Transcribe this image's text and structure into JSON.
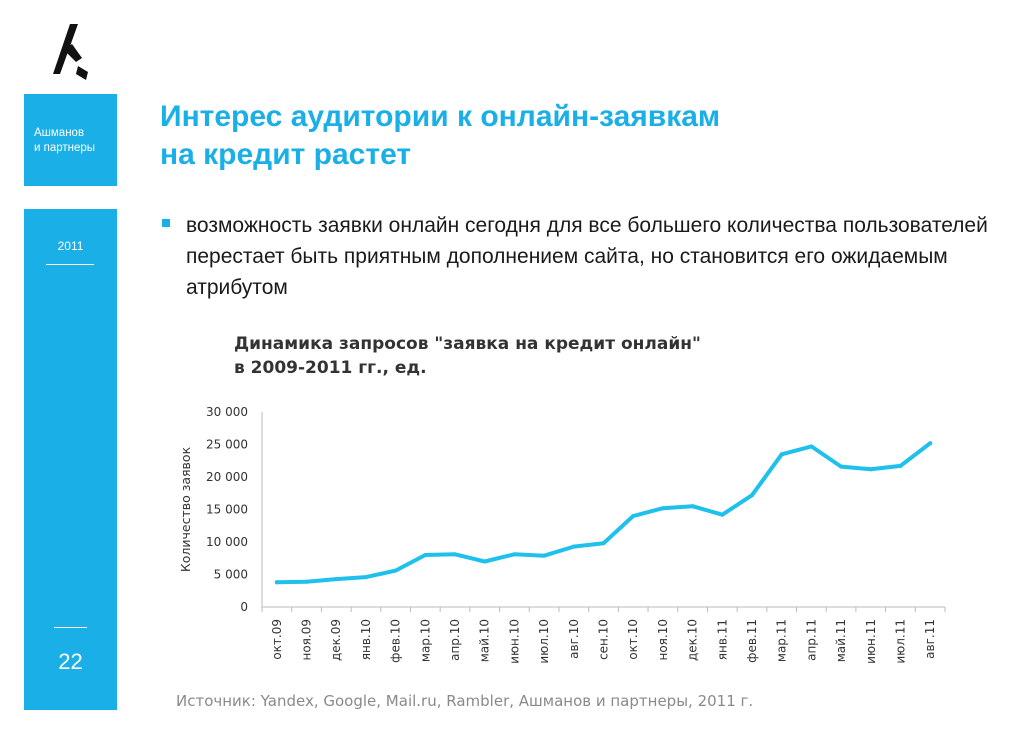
{
  "sidebar": {
    "brand_line1": "Ашманов",
    "brand_line2": "и партнеры",
    "year": "2011",
    "page_number": "22"
  },
  "header": {
    "title_line1": "Интерес аудитории к онлайн-заявкам",
    "title_line2": "на кредит растет"
  },
  "bullet": {
    "text": "возможность заявки онлайн сегодня для все большего количества пользователей перестает быть приятным дополнением сайта, но становится его ожидаемым атрибутом"
  },
  "chart_data": {
    "type": "line",
    "title_line1": "Динамика запросов \"заявка на кредит онлайн\"",
    "title_line2": "в 2009-2011 гг., ед.",
    "xlabel": "",
    "ylabel": "Количество заявок",
    "ylim": [
      0,
      30000
    ],
    "yticks": [
      0,
      5000,
      10000,
      15000,
      20000,
      25000,
      30000
    ],
    "ytick_labels": [
      "0",
      "5 000",
      "10 000",
      "15 000",
      "20 000",
      "25 000",
      "30 000"
    ],
    "categories": [
      "окт.09",
      "ноя.09",
      "дек.09",
      "янв.10",
      "фев.10",
      "мар.10",
      "апр.10",
      "май.10",
      "июн.10",
      "июл.10",
      "авг.10",
      "сен.10",
      "окт.10",
      "ноя.10",
      "дек.10",
      "янв.11",
      "фев.11",
      "мар.11",
      "апр.11",
      "май.11",
      "июн.11",
      "июл.11",
      "авг.11"
    ],
    "values": [
      3800,
      3900,
      4300,
      4600,
      5600,
      8000,
      8100,
      7000,
      8100,
      7900,
      9300,
      9800,
      14000,
      15200,
      15500,
      14200,
      17200,
      23500,
      24700,
      21600,
      21200,
      21700,
      25200
    ],
    "line_color": "#1fc0ec",
    "grid": false
  },
  "source": "Источник: Yandex, Google, Mail.ru, Rambler, Ашманов и партнеры, 2011 г.",
  "colors": {
    "accent": "#1aafe6"
  }
}
